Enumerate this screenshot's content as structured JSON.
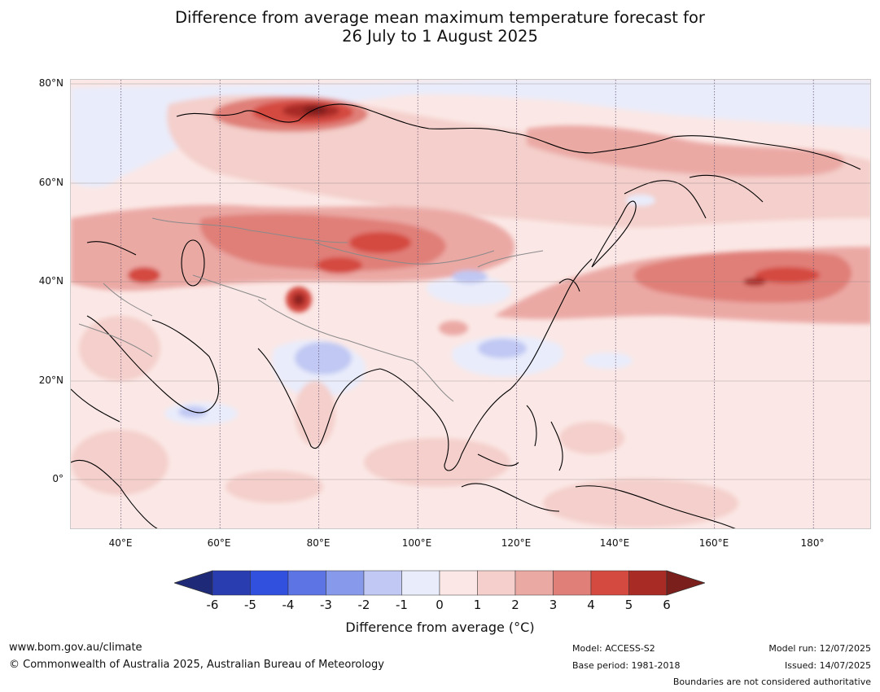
{
  "title": {
    "line1": "Difference from average mean maximum temperature forecast for",
    "line2": "26 July to 1 August 2025"
  },
  "map": {
    "lat_labels": [
      "80°N",
      "60°N",
      "40°N",
      "20°N",
      "0°"
    ],
    "lon_labels": [
      "40°E",
      "60°E",
      "80°E",
      "100°E",
      "120°E",
      "140°E",
      "160°E",
      "180°"
    ],
    "extent": {
      "lon": [
        30,
        192
      ],
      "lat": [
        -10,
        80
      ]
    }
  },
  "colorbar": {
    "title": "Difference from average ($^\\circ$C)",
    "title_display": "Difference from average (°C)",
    "ticks": [
      "-6",
      "-5",
      "-4",
      "-3",
      "-2",
      "-1",
      "0",
      "1",
      "2",
      "3",
      "4",
      "5",
      "6"
    ],
    "colors": [
      "#1e2a78",
      "#2a3db0",
      "#3150dd",
      "#5d74e4",
      "#8799ea",
      "#c0c8f3",
      "#e9ecfb",
      "#fbe8e6",
      "#f4cfcb",
      "#eba9a4",
      "#e07f78",
      "#d44a40",
      "#a82b25",
      "#7a1f1b"
    ]
  },
  "footer": {
    "website": "www.bom.gov.au/climate",
    "copyright": "© Commonwealth of Australia 2025, Australian Bureau of Meteorology",
    "model": "Model: ACCESS-S2",
    "base_period": "Base period: 1981-2018",
    "model_run": "Model run: 12/07/2025",
    "issued": "Issued: 14/07/2025",
    "disclaimer": "Boundaries are not considered authoritative"
  }
}
